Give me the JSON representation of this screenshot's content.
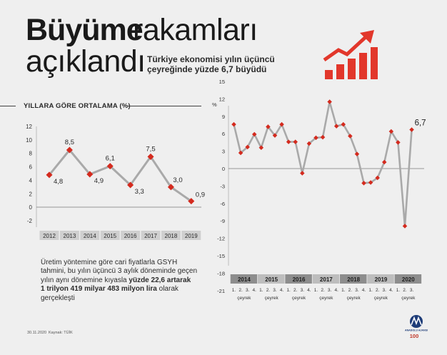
{
  "header": {
    "title_bold": "Büyüme",
    "title_rest": "rakamları",
    "title_line2": "açıklandı",
    "subtitle": "Türkiye ekonomisi yılın üçüncü çeyreğinde yüzde 6,7 büyüdü"
  },
  "left_section": {
    "heading": "YILLARA GÖRE ORTALAMA (%)"
  },
  "note": {
    "part1": "Üretim yöntemine göre cari fiyatlarla GSYH tahmini, bu yılın üçüncü 3 aylık döneminde geçen yılın aynı dönemine kıyasla ",
    "bold1": "yüzde 22,6 artarak",
    "bold2": "1 trilyon 419 milyar 483 milyon lira",
    "part2": " olarak gerçekleşti"
  },
  "footer": {
    "date": "30.11.2020",
    "source": "Kaynak: TÜİK"
  },
  "logo": {
    "agency": "ANADOLU AJANSI",
    "anniversary": "100"
  },
  "colors": {
    "marker": "#d42a1e",
    "line": "#a9a9a9",
    "year_band_dark": "#8d8d8d",
    "year_band_light": "#bdbdbd",
    "icon_red": "#e2372b"
  },
  "icons": [
    "growth-bar-chart-icon",
    "aa-logo-icon"
  ],
  "chart_data": [
    {
      "type": "line",
      "categories": [
        "2012",
        "2013",
        "2014",
        "2015",
        "2016",
        "2017",
        "2018",
        "2019"
      ],
      "values": [
        4.8,
        8.5,
        4.9,
        6.1,
        3.3,
        7.5,
        3.0,
        0.9
      ],
      "value_labels": [
        "4,8",
        "8,5",
        "4,9",
        "6,1",
        "3,3",
        "7,5",
        "3,0",
        "0,9"
      ],
      "yticks": [
        "12",
        "10",
        "8",
        "6",
        "4",
        "2",
        "0",
        "-2"
      ],
      "ylim": [
        -2,
        12
      ],
      "grid": false
    },
    {
      "type": "line",
      "ylabel": "%",
      "yticks": [
        "15",
        "12",
        "9",
        "6",
        "3",
        "0",
        "-3",
        "-6",
        "-9",
        "-12",
        "-15",
        "-18",
        "-21"
      ],
      "ylim": [
        -21,
        15
      ],
      "years": [
        "2014",
        "2015",
        "2016",
        "2017",
        "2018",
        "2019",
        "2020"
      ],
      "quarter_labels": [
        "1.",
        "2.",
        "3.",
        "4."
      ],
      "period_label": "çeyrek",
      "values": [
        7.6,
        2.7,
        3.7,
        5.9,
        3.6,
        7.2,
        5.7,
        7.6,
        4.6,
        4.6,
        -0.8,
        4.3,
        5.3,
        5.4,
        11.5,
        7.3,
        7.6,
        5.6,
        2.5,
        -2.5,
        -2.4,
        -1.6,
        1.1,
        6.4,
        4.5,
        -9.9,
        6.7
      ],
      "last_label": "6,7",
      "grid": false
    }
  ]
}
